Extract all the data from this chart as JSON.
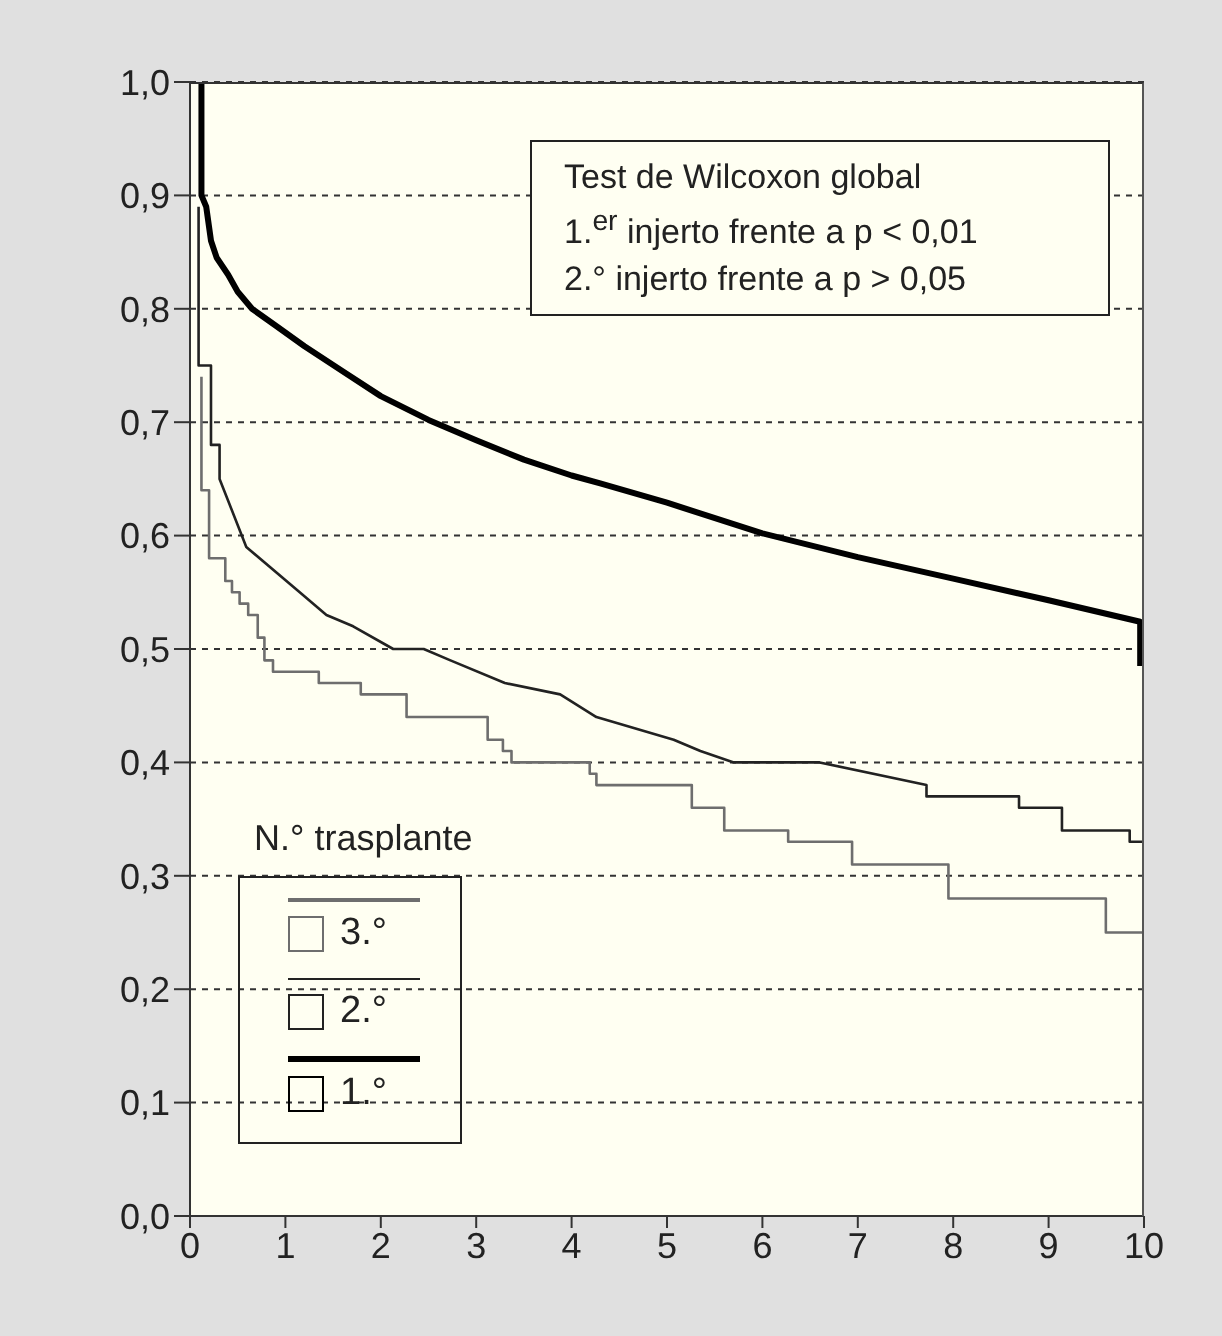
{
  "chart_data": {
    "type": "line",
    "annotations": [
      "Test de Wilcoxon global",
      "1.$^{er}$ injerto frente a p < 0,01",
      "2.° injerto frente a p > 0,05"
    ],
    "legend_title": "N.° trasplante",
    "legend": "bottom left",
    "grid": "y",
    "xlim": [
      0,
      10
    ],
    "xticks": [
      0,
      1,
      2,
      3,
      4,
      5,
      6,
      7,
      8,
      9,
      10
    ],
    "ylim": [
      0,
      1
    ],
    "yticks": [
      {
        "value": 0,
        "label": "0,0"
      },
      {
        "value": 0.1,
        "label": "0,1"
      },
      {
        "value": 0.2,
        "label": "0,2"
      },
      {
        "value": 0.3,
        "label": "0,3"
      },
      {
        "value": 0.4,
        "label": "0,4"
      },
      {
        "value": 0.5,
        "label": "0,5"
      },
      {
        "value": 0.6,
        "label": "0,6"
      },
      {
        "value": 0.7,
        "label": "0,7"
      },
      {
        "value": 0.8,
        "label": "0,8"
      },
      {
        "value": 0.9,
        "label": "0,9"
      },
      {
        "value": 1,
        "label": "1,0"
      }
    ],
    "series": [
      {
        "name": "3.°",
        "type": "step",
        "color": "#6e6e6e",
        "x": [
          0.12,
          0.12,
          0.2,
          0.37,
          0.44,
          0.52,
          0.61,
          0.71,
          0.78,
          0.87,
          1.35,
          1.79,
          2.27,
          3.12,
          3.28,
          3.37,
          4.19,
          4.26,
          5.26,
          5.6,
          6.27,
          6.94,
          7.95,
          9.6,
          10
        ],
        "values": [
          0.74,
          0.64,
          0.58,
          0.56,
          0.55,
          0.54,
          0.53,
          0.51,
          0.49,
          0.48,
          0.47,
          0.46,
          0.44,
          0.42,
          0.41,
          0.4,
          0.39,
          0.38,
          0.36,
          0.34,
          0.33,
          0.31,
          0.28,
          0.25,
          0.25
        ]
      },
      {
        "name": "2.°",
        "type": "line",
        "color": "#222222",
        "x": [
          0.09,
          0.09,
          0.22,
          0.22,
          0.31,
          0.31,
          0.59,
          1.15,
          1.43,
          1.71,
          2.13,
          2.45,
          2.73,
          3.3,
          3.88,
          4.26,
          5.07,
          5.35,
          5.7,
          6.6,
          7.72,
          7.72,
          8.53,
          8.53,
          8.69,
          8.69,
          9.14,
          9.14,
          9.62,
          9.62,
          9.85,
          9.85,
          10,
          10
        ],
        "values": [
          0.89,
          0.75,
          0.75,
          0.68,
          0.68,
          0.65,
          0.59,
          0.55,
          0.53,
          0.52,
          0.5,
          0.5,
          0.49,
          0.47,
          0.46,
          0.44,
          0.42,
          0.41,
          0.4,
          0.4,
          0.38,
          0.37,
          0.37,
          0.37,
          0.37,
          0.36,
          0.36,
          0.34,
          0.34,
          0.34,
          0.34,
          0.33,
          0.33,
          0.28
        ]
      },
      {
        "name": "1.°",
        "type": "line",
        "color": "#000000",
        "x": [
          0.12,
          0.12,
          0.17,
          0.22,
          0.28,
          0.4,
          0.5,
          0.65,
          0.9,
          1.2,
          1.6,
          2,
          2.5,
          3,
          3.5,
          4,
          4.3,
          5,
          6,
          7,
          8,
          9,
          9.96,
          9.96
        ],
        "values": [
          1,
          0.9,
          0.89,
          0.86,
          0.845,
          0.83,
          0.815,
          0.8,
          0.785,
          0.767,
          0.745,
          0.723,
          0.702,
          0.684,
          0.667,
          0.653,
          0.646,
          0.629,
          0.602,
          0.581,
          0.562,
          0.543,
          0.524,
          0.485
        ]
      }
    ]
  }
}
